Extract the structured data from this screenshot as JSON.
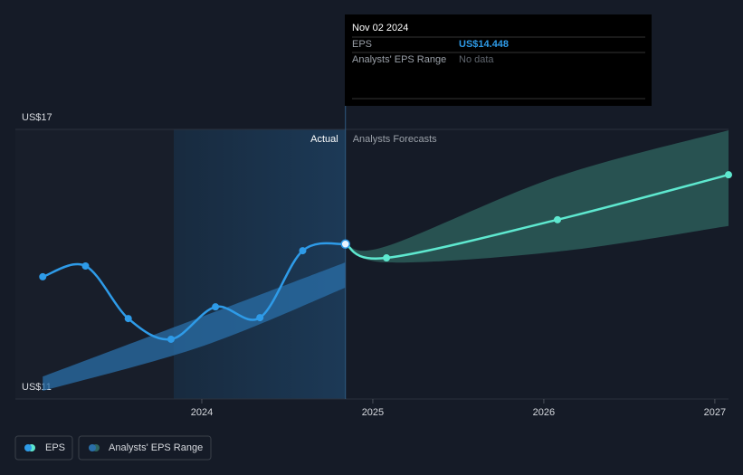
{
  "chart_data": {
    "type": "line",
    "xlim": [
      2022.91,
      2027.08
    ],
    "xticks": [
      2024,
      2025,
      2026,
      2027
    ],
    "ylim": [
      11,
      17
    ],
    "yticks": [
      {
        "value": 11,
        "label": "US$11"
      },
      {
        "value": 17,
        "label": "US$17"
      }
    ],
    "grid": true,
    "annotations": {
      "actual": "Actual",
      "forecast": "Analysts Forecasts"
    },
    "series": [
      {
        "name": "EPS",
        "color": "#2e9be8",
        "x": [
          2023.07,
          2023.32,
          2023.57,
          2023.82,
          2024.08,
          2024.34,
          2024.59,
          2024.84
        ],
        "values": [
          13.72,
          13.96,
          12.79,
          12.33,
          13.05,
          12.81,
          14.3,
          14.448
        ]
      }
    ],
    "forecast": {
      "color": "#5ee8cf",
      "x": [
        2025.08,
        2026.08,
        2027.08
      ],
      "values": [
        14.14,
        14.99,
        15.99
      ]
    },
    "range": {
      "name": "Analysts' EPS Range",
      "color": "#2a6fa8",
      "x": [
        2023.07,
        2024.0,
        2024.84
      ],
      "low": [
        11.18,
        12.17,
        13.48
      ],
      "high": [
        11.5,
        12.83,
        14.04
      ]
    },
    "forecast_range": {
      "color": "#2f6660",
      "x": [
        2025.08,
        2026.08,
        2027.08
      ],
      "low": [
        14.04,
        14.28,
        14.85
      ],
      "high": [
        14.4,
        15.95,
        16.98
      ]
    },
    "tooltip": {
      "date": "Nov 02 2024",
      "rows": [
        {
          "label": "EPS",
          "value": "US$14.448"
        },
        {
          "label": "Analysts' EPS Range",
          "value": "No data"
        }
      ]
    }
  }
}
